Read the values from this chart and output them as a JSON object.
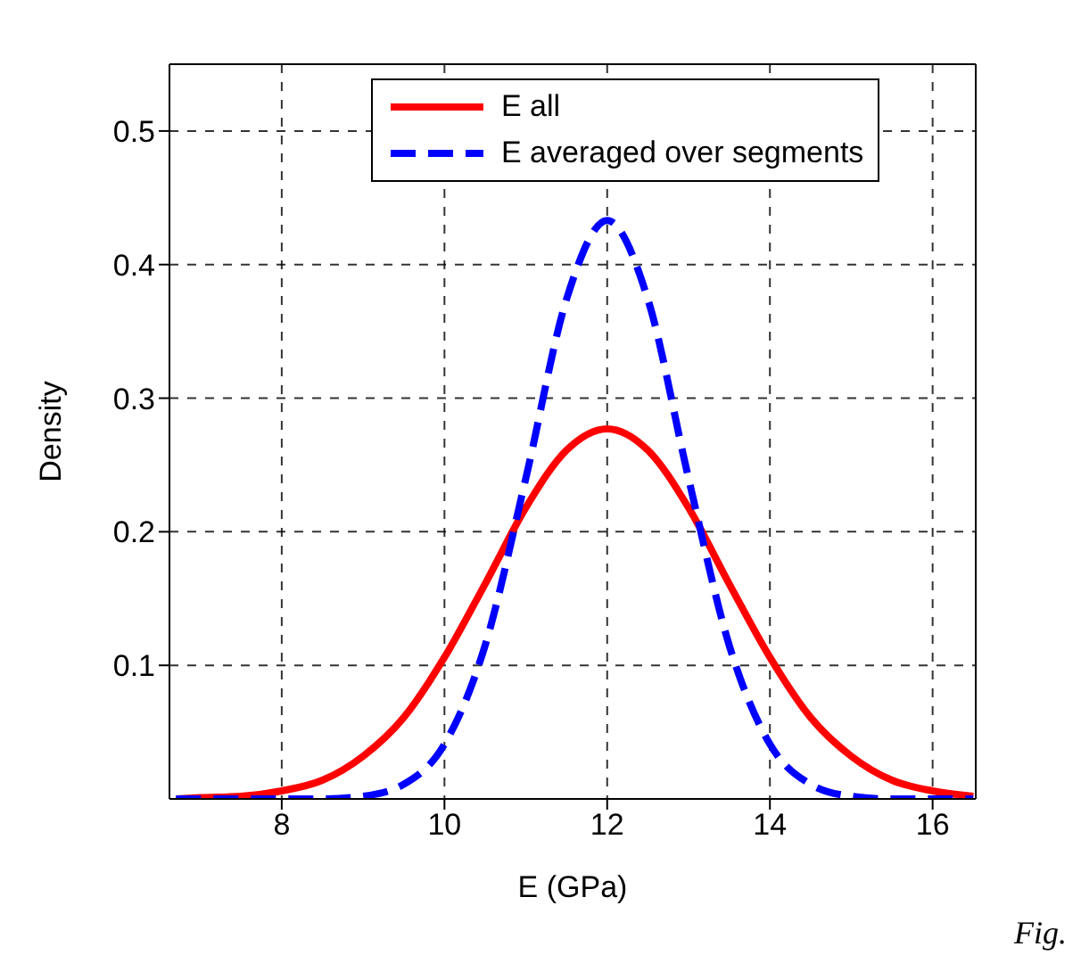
{
  "chart_data": {
    "type": "line",
    "xlabel": "E (GPa)",
    "ylabel": "Density",
    "x": [
      6.7,
      7,
      7.5,
      8,
      8.5,
      9,
      9.5,
      10,
      10.5,
      11,
      11.5,
      12,
      12.5,
      13,
      13.5,
      14,
      14.5,
      15,
      15.5,
      16,
      16.5
    ],
    "series": [
      {
        "name": "E all",
        "color": "#ff0000",
        "line_style": "solid",
        "values": [
          0,
          0.001,
          0.002,
          0.006,
          0.014,
          0.032,
          0.061,
          0.106,
          0.161,
          0.218,
          0.261,
          0.277,
          0.261,
          0.218,
          0.161,
          0.106,
          0.061,
          0.032,
          0.014,
          0.006,
          0.002
        ]
      },
      {
        "name": "E averaged over segments",
        "color": "#0000ff",
        "line_style": "dashed",
        "values": [
          0,
          0,
          0,
          0,
          0,
          0.002,
          0.011,
          0.041,
          0.115,
          0.24,
          0.374,
          0.433,
          0.374,
          0.24,
          0.115,
          0.041,
          0.011,
          0.002,
          0,
          0,
          0
        ]
      }
    ],
    "xlim": [
      6.62,
      16.53
    ],
    "xticks": [
      8,
      10,
      12,
      14,
      16
    ],
    "ylim": [
      0,
      0.55
    ],
    "yticks": [
      0.1,
      0.2,
      0.3,
      0.4,
      0.5
    ],
    "grid": true,
    "legend": "top",
    "annotations": [
      "Fig."
    ]
  }
}
